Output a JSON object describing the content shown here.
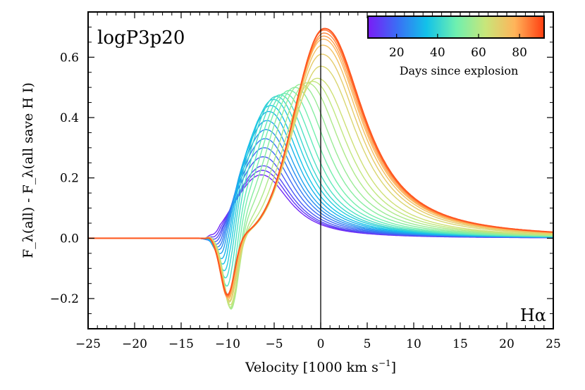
{
  "chart_data": {
    "type": "line",
    "model_label": "logP3p20",
    "line_label": "Hα",
    "xlabel": "Velocity [1000 km s",
    "xlabel_exponent": "−1",
    "xlabel_close": "]",
    "ylabel": "F_λ(all) - F_λ(all save H I)",
    "xlim": [
      -25,
      25
    ],
    "ylim": [
      -0.3,
      0.75
    ],
    "xticks": [
      -25,
      -20,
      -15,
      -10,
      -5,
      0,
      5,
      10,
      15,
      20,
      25
    ],
    "xtick_labels": [
      "−25",
      "−20",
      "−15",
      "−10",
      "−5",
      "0",
      "5",
      "10",
      "15",
      "20",
      "25"
    ],
    "yticks": [
      -0.2,
      0.0,
      0.2,
      0.4,
      0.6
    ],
    "ytick_labels": [
      "−0.2",
      "0.0",
      "0.2",
      "0.4",
      "0.6"
    ],
    "colorbar": {
      "label": "Days since explosion",
      "range": [
        6,
        92
      ],
      "ticks": [
        20,
        40,
        60,
        80
      ],
      "tick_labels": [
        "20",
        "40",
        "60",
        "80"
      ],
      "colors": [
        "#7a1cf6",
        "#3a6ef5",
        "#12c2e9",
        "#6ef0b0",
        "#c8e67a",
        "#ffb45a",
        "#ff3d10"
      ]
    },
    "series": [
      {
        "day": 8,
        "peak_v": -6.4,
        "peak": 0.21,
        "trough_v": -11.1,
        "trough": -0.01,
        "v0": 0.093
      },
      {
        "day": 11,
        "peak_v": -6.3,
        "peak": 0.225,
        "trough_v": -11.0,
        "trough": -0.02,
        "v0": 0.095
      },
      {
        "day": 14,
        "peak_v": -6.2,
        "peak": 0.24,
        "trough_v": -10.9,
        "trough": -0.03,
        "v0": 0.1
      },
      {
        "day": 17,
        "peak_v": -6.2,
        "peak": 0.27,
        "trough_v": -10.8,
        "trough": -0.045,
        "v0": 0.11
      },
      {
        "day": 20,
        "peak_v": -6.1,
        "peak": 0.3,
        "trough_v": -10.7,
        "trough": -0.06,
        "v0": 0.12
      },
      {
        "day": 23,
        "peak_v": -6.0,
        "peak": 0.33,
        "trough_v": -10.6,
        "trough": -0.075,
        "v0": 0.13
      },
      {
        "day": 26,
        "peak_v": -5.9,
        "peak": 0.36,
        "trough_v": -10.5,
        "trough": -0.09,
        "v0": 0.14
      },
      {
        "day": 29,
        "peak_v": -5.8,
        "peak": 0.39,
        "trough_v": -10.4,
        "trough": -0.11,
        "v0": 0.15
      },
      {
        "day": 32,
        "peak_v": -5.6,
        "peak": 0.42,
        "trough_v": -10.3,
        "trough": -0.13,
        "v0": 0.16
      },
      {
        "day": 35,
        "peak_v": -5.4,
        "peak": 0.44,
        "trough_v": -10.2,
        "trough": -0.15,
        "v0": 0.18
      },
      {
        "day": 38,
        "peak_v": -5.1,
        "peak": 0.46,
        "trough_v": -10.1,
        "trough": -0.17,
        "v0": 0.2
      },
      {
        "day": 41,
        "peak_v": -4.8,
        "peak": 0.47,
        "trough_v": -10.0,
        "trough": -0.19,
        "v0": 0.22
      },
      {
        "day": 44,
        "peak_v": -4.4,
        "peak": 0.475,
        "trough_v": -9.9,
        "trough": -0.21,
        "v0": 0.25
      },
      {
        "day": 47,
        "peak_v": -3.9,
        "peak": 0.48,
        "trough_v": -9.8,
        "trough": -0.23,
        "v0": 0.28
      },
      {
        "day": 50,
        "peak_v": -3.4,
        "peak": 0.49,
        "trough_v": -9.7,
        "trough": -0.245,
        "v0": 0.31
      },
      {
        "day": 53,
        "peak_v": -2.8,
        "peak": 0.5,
        "trough_v": -9.6,
        "trough": -0.255,
        "v0": 0.35
      },
      {
        "day": 56,
        "peak_v": -2.2,
        "peak": 0.51,
        "trough_v": -9.6,
        "trough": -0.25,
        "v0": 0.39
      },
      {
        "day": 59,
        "peak_v": -1.5,
        "peak": 0.515,
        "trough_v": -9.6,
        "trough": -0.245,
        "v0": 0.43
      },
      {
        "day": 62,
        "peak_v": -0.9,
        "peak": 0.52,
        "trough_v": -9.7,
        "trough": -0.235,
        "v0": 0.47
      },
      {
        "day": 65,
        "peak_v": -0.4,
        "peak": 0.53,
        "trough_v": -9.7,
        "trough": -0.225,
        "v0": 0.51
      },
      {
        "day": 68,
        "peak_v": 0.0,
        "peak": 0.57,
        "trough_v": -9.8,
        "trough": -0.215,
        "v0": 0.57
      },
      {
        "day": 71,
        "peak_v": 0.1,
        "peak": 0.61,
        "trough_v": -9.8,
        "trough": -0.21,
        "v0": 0.61
      },
      {
        "day": 74,
        "peak_v": 0.2,
        "peak": 0.64,
        "trough_v": -9.9,
        "trough": -0.205,
        "v0": 0.635
      },
      {
        "day": 77,
        "peak_v": 0.25,
        "peak": 0.66,
        "trough_v": -9.9,
        "trough": -0.2,
        "v0": 0.655
      },
      {
        "day": 80,
        "peak_v": 0.3,
        "peak": 0.67,
        "trough_v": -10.0,
        "trough": -0.2,
        "v0": 0.665
      },
      {
        "day": 83,
        "peak_v": 0.35,
        "peak": 0.68,
        "trough_v": -10.0,
        "trough": -0.195,
        "v0": 0.675
      },
      {
        "day": 86,
        "peak_v": 0.35,
        "peak": 0.69,
        "trough_v": -10.0,
        "trough": -0.195,
        "v0": 0.685
      },
      {
        "day": 89,
        "peak_v": 0.4,
        "peak": 0.695,
        "trough_v": -10.0,
        "trough": -0.19,
        "v0": 0.69
      }
    ]
  }
}
